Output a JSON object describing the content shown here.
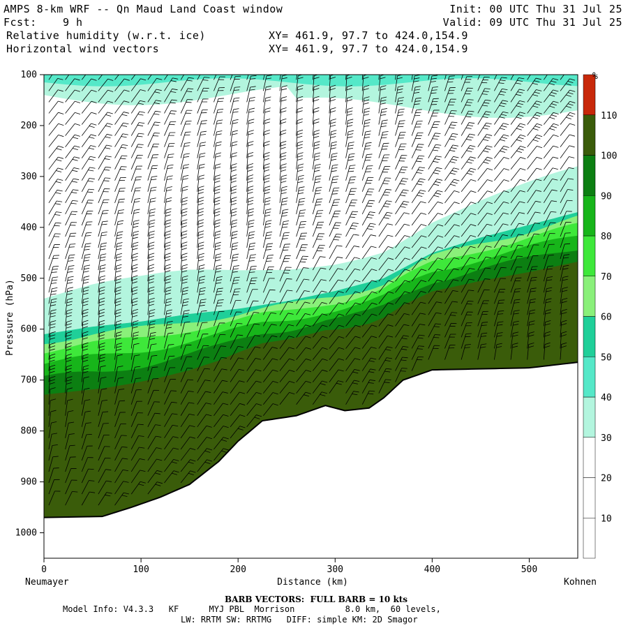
{
  "header": {
    "title": "AMPS 8-km WRF -- Qn Maud Land Coast window",
    "fcst_label": "Fcst:",
    "fcst_value": "9 h",
    "field1": "Relative humidity (w.r.t. ice)",
    "field2": "Horizontal wind vectors",
    "xy1": "XY= 461.9, 97.7 to 424.0,154.9",
    "xy2": "XY= 461.9, 97.7 to 424.0,154.9",
    "init": "Init: 00 UTC Thu 31 Jul 25",
    "valid": "Valid: 09 UTC Thu 31 Jul 25"
  },
  "footer": {
    "barb": "BARB VECTORS:  FULL BARB = 10 kts",
    "model_line1": "Model Info: V4.3.3   KF      MYJ PBL  Morrison          8.0 km,  60 levels,",
    "model_line2": "LW: RRTM SW: RRTMG   DIFF: simple KM: 2D Smagor"
  },
  "chart_data": {
    "type": "heatmap",
    "title": "Relative humidity (w.r.t. ice)",
    "xlabel": "Distance (km)",
    "ylabel": "Pressure (hPa)",
    "xlim": [
      0,
      550
    ],
    "ylim": [
      1050,
      100
    ],
    "x_ticks": [
      0,
      100,
      200,
      300,
      400,
      500
    ],
    "y_ticks": [
      100,
      200,
      300,
      400,
      500,
      600,
      700,
      800,
      900,
      1000
    ],
    "x_left_label": "Neumayer",
    "x_right_label": "Kohnen",
    "colorbar": {
      "unit": "%",
      "levels": [
        10,
        20,
        30,
        40,
        50,
        60,
        70,
        80,
        90,
        100,
        110
      ],
      "colors": [
        "#ffffff",
        "#ffffff",
        "#ffffff",
        "#b3f5de",
        "#55e8c8",
        "#1fcf99",
        "#8af07a",
        "#3ee83a",
        "#17b51a",
        "#0c7f12",
        "#3a5c0a",
        "#c8280a"
      ]
    },
    "terrain": {
      "distance_km": [
        0,
        60,
        90,
        120,
        150,
        180,
        200,
        225,
        260,
        290,
        310,
        335,
        350,
        370,
        400,
        450,
        500,
        550
      ],
      "surface_hpa": [
        970,
        968,
        950,
        930,
        905,
        860,
        820,
        780,
        770,
        750,
        760,
        755,
        735,
        700,
        680,
        678,
        676,
        665
      ]
    },
    "upper_moist_top_hpa": {
      "distance_km": [
        0,
        50,
        100,
        150,
        200,
        250,
        300,
        350,
        400,
        450,
        500,
        550
      ],
      "hpa": [
        610,
        595,
        585,
        570,
        560,
        545,
        525,
        500,
        450,
        420,
        395,
        370
      ]
    }
  }
}
